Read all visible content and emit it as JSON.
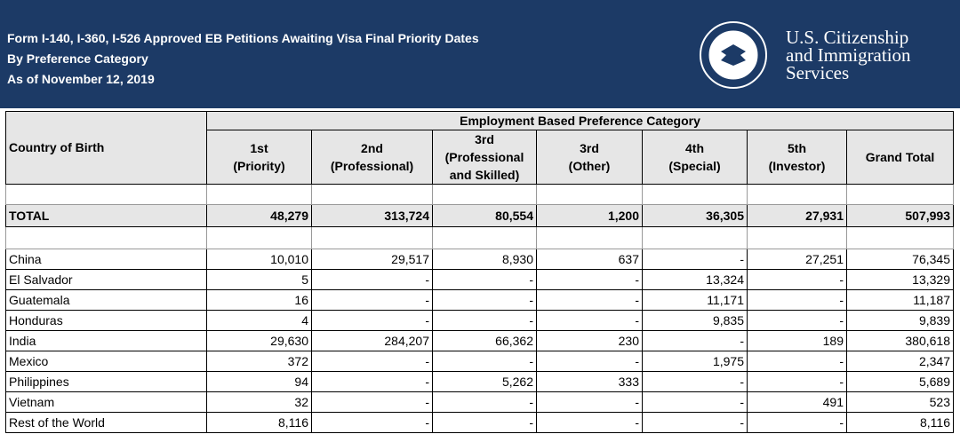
{
  "header": {
    "title_lines": [
      "Form I-140, I-360, I-526 Approved EB Petitions Awaiting Visa Final Priority Dates",
      "By Preference Category",
      "As of November 12, 2019"
    ],
    "agency_lines": [
      "U.S. Citizenship",
      "and Immigration",
      "Services"
    ]
  },
  "table": {
    "row_header": "Country of Birth",
    "group_header": "Employment Based Preference Category",
    "columns": [
      [
        "1st",
        "(Priority)"
      ],
      [
        "2nd",
        "(Professional)"
      ],
      [
        "3rd",
        "(Professional",
        "and Skilled)"
      ],
      [
        "3rd",
        "(Other)"
      ],
      [
        "4th",
        "(Special)"
      ],
      [
        "5th",
        "(Investor)"
      ],
      [
        "Grand Total"
      ]
    ],
    "total": {
      "label": "TOTAL",
      "values": [
        "48,279",
        "313,724",
        "80,554",
        "1,200",
        "36,305",
        "27,931",
        "507,993"
      ]
    },
    "rows": [
      {
        "country": "China",
        "values": [
          "10,010",
          "29,517",
          "8,930",
          "637",
          "-",
          "27,251",
          "76,345"
        ]
      },
      {
        "country": "El Salvador",
        "values": [
          "5",
          "-",
          "-",
          "-",
          "13,324",
          "-",
          "13,329"
        ]
      },
      {
        "country": "Guatemala",
        "values": [
          "16",
          "-",
          "-",
          "-",
          "11,171",
          "-",
          "11,187"
        ]
      },
      {
        "country": "Honduras",
        "values": [
          "4",
          "-",
          "-",
          "-",
          "9,835",
          "-",
          "9,839"
        ]
      },
      {
        "country": "India",
        "values": [
          "29,630",
          "284,207",
          "66,362",
          "230",
          "-",
          "189",
          "380,618"
        ]
      },
      {
        "country": "Mexico",
        "values": [
          "372",
          "-",
          "-",
          "-",
          "1,975",
          "-",
          "2,347"
        ]
      },
      {
        "country": "Philippines",
        "values": [
          "94",
          "-",
          "5,262",
          "333",
          "-",
          "-",
          "5,689"
        ]
      },
      {
        "country": "Vietnam",
        "values": [
          "32",
          "-",
          "-",
          "-",
          "-",
          "491",
          "523"
        ]
      },
      {
        "country": "Rest of the World",
        "values": [
          "8,116",
          "-",
          "-",
          "-",
          "-",
          "-",
          "8,116"
        ]
      }
    ]
  }
}
